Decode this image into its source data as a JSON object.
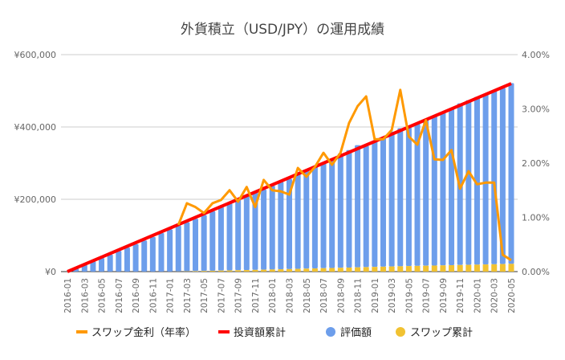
{
  "chart_data": {
    "type": "bar",
    "title": "外貨積立（USD/JPY）の運用成績",
    "categories": [
      "2016-01",
      "2016-02",
      "2016-03",
      "2016-04",
      "2016-05",
      "2016-06",
      "2016-07",
      "2016-08",
      "2016-09",
      "2016-10",
      "2016-11",
      "2016-12",
      "2017-01",
      "2017-02",
      "2017-03",
      "2017-04",
      "2017-05",
      "2017-06",
      "2017-07",
      "2017-08",
      "2017-09",
      "2017-10",
      "2017-11",
      "2017-12",
      "2018-01",
      "2018-02",
      "2018-03",
      "2018-04",
      "2018-05",
      "2018-06",
      "2018-07",
      "2018-08",
      "2018-09",
      "2018-10",
      "2018-11",
      "2018-12",
      "2019-01",
      "2019-02",
      "2019-03",
      "2019-04",
      "2019-05",
      "2019-06",
      "2019-07",
      "2019-08",
      "2019-09",
      "2019-10",
      "2019-11",
      "2019-12",
      "2020-01",
      "2020-02",
      "2020-03",
      "2020-04",
      "2020-05"
    ],
    "left_axis": {
      "range": [
        0,
        600000
      ],
      "ticks": [
        "¥0",
        "¥200,000",
        "¥400,000",
        "¥600,000"
      ],
      "tick_values": [
        0,
        200000,
        400000,
        600000
      ]
    },
    "right_axis": {
      "range": [
        0,
        4
      ],
      "ticks": [
        "0.00%",
        "1.00%",
        "2.00%",
        "3.00%",
        "4.00%"
      ],
      "tick_values": [
        0,
        1,
        2,
        3,
        4
      ]
    },
    "grid": true,
    "legend_position": "bottom",
    "series": [
      {
        "name": "スワップ金利（年率）",
        "type": "line",
        "axis": "right",
        "color": "#ff9900",
        "unit": "%",
        "values": [
          null,
          null,
          null,
          null,
          null,
          null,
          null,
          null,
          null,
          null,
          null,
          null,
          null,
          0.86,
          1.26,
          1.19,
          1.08,
          1.26,
          1.32,
          1.5,
          1.29,
          1.56,
          1.19,
          1.69,
          1.5,
          1.48,
          1.42,
          1.91,
          1.75,
          1.93,
          2.19,
          1.97,
          2.19,
          2.74,
          3.05,
          3.23,
          2.44,
          2.44,
          2.61,
          3.35,
          2.49,
          2.34,
          2.79,
          2.07,
          2.06,
          2.24,
          1.53,
          1.85,
          1.61,
          1.64,
          1.64,
          0.31,
          0.21
        ]
      },
      {
        "name": "投資額累計",
        "type": "line",
        "axis": "left",
        "color": "#ff0000",
        "values": [
          0,
          10000,
          20000,
          30000,
          40000,
          50000,
          60000,
          70000,
          80000,
          90000,
          100000,
          110000,
          120000,
          130000,
          140000,
          150000,
          160000,
          170000,
          180000,
          190000,
          200000,
          210000,
          220000,
          230000,
          240000,
          250000,
          260000,
          270000,
          280000,
          290000,
          300000,
          310000,
          320000,
          330000,
          340000,
          350000,
          360000,
          370000,
          380000,
          390000,
          400000,
          410000,
          420000,
          430000,
          440000,
          450000,
          460000,
          470000,
          480000,
          490000,
          500000,
          510000,
          520000
        ]
      },
      {
        "name": "評価額",
        "type": "bar",
        "axis": "left",
        "color": "#6d9eeb",
        "values": [
          0,
          9600,
          19300,
          28800,
          38000,
          47200,
          57500,
          67000,
          76500,
          86000,
          96000,
          107000,
          117000,
          127000,
          136000,
          145000,
          155000,
          165000,
          176000,
          186000,
          196000,
          208000,
          218000,
          222000,
          232000,
          242000,
          250000,
          262000,
          272000,
          282000,
          290000,
          303000,
          316000,
          325000,
          338000,
          336000,
          348000,
          358000,
          373000,
          382000,
          384000,
          393000,
          405000,
          414000,
          422000,
          433000,
          447000,
          455000,
          464000,
          472000,
          480000,
          487000,
          500000
        ]
      },
      {
        "name": "スワップ累計",
        "type": "bar",
        "axis": "left",
        "color": "#f1c232",
        "values": [
          0,
          0,
          0,
          0,
          0,
          0,
          0,
          0,
          0,
          0,
          0,
          0,
          0,
          300,
          800,
          1300,
          1800,
          2300,
          2800,
          3300,
          3800,
          4300,
          4800,
          5300,
          5900,
          6500,
          7000,
          7600,
          8200,
          8800,
          9400,
          10000,
          10600,
          11200,
          11800,
          12400,
          13000,
          13600,
          14200,
          14800,
          15300,
          15800,
          16300,
          16800,
          17300,
          17800,
          18300,
          18800,
          19300,
          19800,
          20300,
          21000,
          21500
        ]
      }
    ]
  }
}
